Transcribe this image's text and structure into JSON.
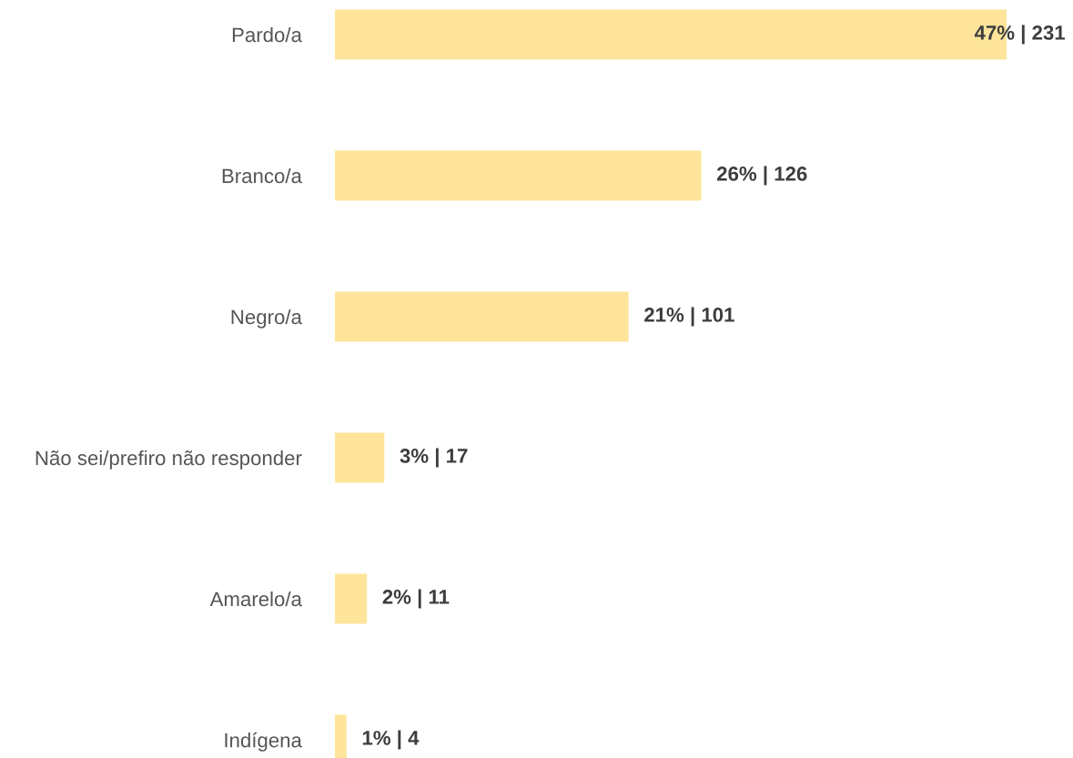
{
  "chart_data": {
    "type": "bar",
    "orientation": "horizontal",
    "categories": [
      "Pardo/a",
      "Branco/a",
      "Negro/a",
      "Não sei/prefiro não responder",
      "Amarelo/a",
      "Indígena"
    ],
    "values": [
      231,
      126,
      101,
      17,
      11,
      4
    ],
    "value_labels": [
      "47% | 231",
      "26% | 126",
      "21% | 101",
      "3% | 17",
      "2% | 11",
      "1% | 4"
    ],
    "color": "#fee59b",
    "grid": false,
    "legend": false
  }
}
